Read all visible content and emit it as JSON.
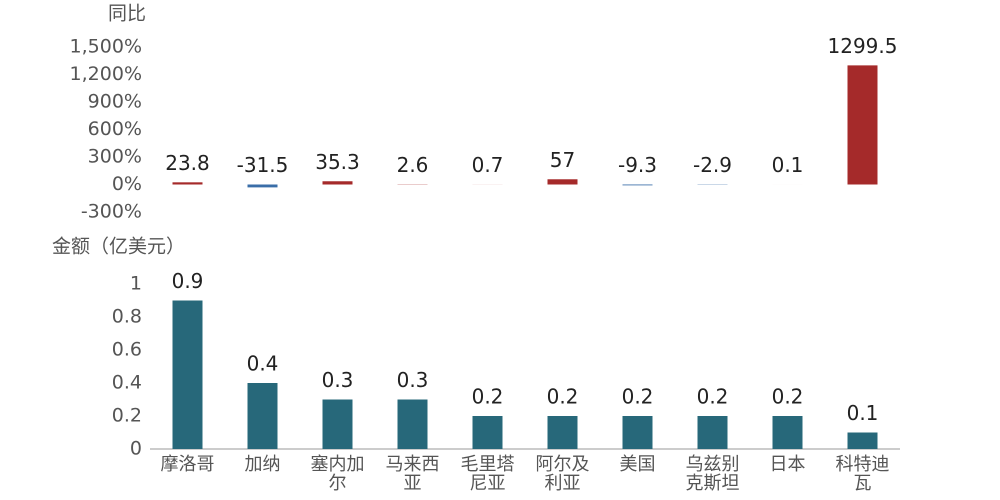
{
  "chart_data": [
    {
      "type": "bar",
      "y_label": "同比",
      "values": [
        23.8,
        -31.5,
        35.3,
        2.6,
        0.7,
        57,
        -9.3,
        -2.9,
        0.1,
        1299.5
      ],
      "positive_color": "#a52a2a",
      "negative_color": "#3a6ea8",
      "ylim": [
        -300,
        1500
      ],
      "yticks": [
        {
          "value": -300,
          "label": "-300%"
        },
        {
          "value": 0,
          "label": "0%"
        },
        {
          "value": 300,
          "label": "300%"
        },
        {
          "value": 600,
          "label": "600%"
        },
        {
          "value": 900,
          "label": "900%"
        },
        {
          "value": 1200,
          "label": "1,200%"
        },
        {
          "value": 1500,
          "label": "1,500%"
        }
      ]
    },
    {
      "type": "bar",
      "y_label": "金额（亿美元）",
      "categories": [
        "摩洛哥",
        "加纳",
        "塞内加尔",
        "马来西亚",
        "毛里塔尼亚",
        "阿尔及利亚",
        "美国",
        "乌兹别克斯坦",
        "日本",
        "科特迪瓦"
      ],
      "values": [
        0.9,
        0.4,
        0.3,
        0.3,
        0.2,
        0.2,
        0.2,
        0.2,
        0.2,
        0.1
      ],
      "color": "#27687a",
      "ylim": [
        0,
        1
      ],
      "yticks": [
        0,
        0.2,
        0.4,
        0.6,
        0.8,
        1
      ]
    }
  ]
}
